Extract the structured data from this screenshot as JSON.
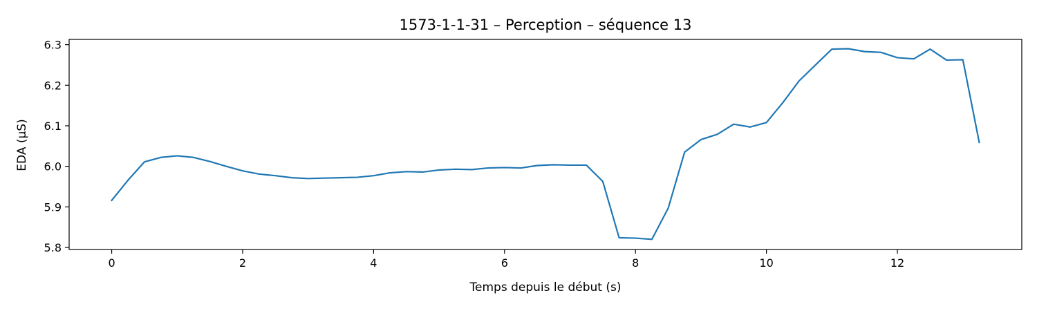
{
  "chart_data": {
    "type": "line",
    "title": "1573-1-1-31 – Perception – séquence 13",
    "xlabel": "Temps depuis le début (s)",
    "ylabel": "EDA (µS)",
    "xlim": [
      -0.65,
      13.9
    ],
    "ylim": [
      5.795,
      6.313
    ],
    "xticks": [
      0,
      2,
      4,
      6,
      8,
      10,
      12
    ],
    "yticks": [
      5.8,
      5.9,
      6.0,
      6.1,
      6.2,
      6.3
    ],
    "ytick_labels": [
      "5.8",
      "5.9",
      "6.0",
      "6.1",
      "6.2",
      "6.3"
    ],
    "grid": false,
    "line_color": "#1f77b4",
    "series": [
      {
        "x": [
          0,
          0.25,
          0.5,
          0.75,
          1.0,
          1.25,
          1.5,
          1.75,
          2.0,
          2.25,
          2.5,
          2.75,
          3.0,
          3.25,
          3.5,
          3.75,
          4.0,
          4.25,
          4.5,
          4.75,
          5.0,
          5.25,
          5.5,
          5.75,
          6.0,
          6.25,
          6.5,
          6.75,
          7.0,
          7.25,
          7.5,
          7.75,
          8.0,
          8.25,
          8.5,
          8.75,
          9.0,
          9.25,
          9.5,
          9.75,
          10.0,
          10.25,
          10.5,
          10.75,
          11.0,
          11.25,
          11.5,
          11.75,
          12.0,
          12.25,
          12.5,
          12.75,
          13.0,
          13.25
        ],
        "y": [
          5.916,
          5.966,
          6.011,
          6.022,
          6.026,
          6.022,
          6.012,
          6.0,
          5.989,
          5.981,
          5.977,
          5.972,
          5.97,
          5.971,
          5.972,
          5.973,
          5.977,
          5.984,
          5.987,
          5.986,
          5.991,
          5.993,
          5.992,
          5.996,
          5.997,
          5.996,
          6.002,
          6.004,
          6.003,
          6.003,
          5.963,
          5.824,
          5.823,
          5.82,
          5.897,
          6.035,
          6.066,
          6.079,
          6.104,
          6.097,
          6.108,
          6.157,
          6.211,
          6.25,
          6.289,
          6.29,
          6.283,
          6.281,
          6.268,
          6.265,
          6.289,
          6.262,
          6.263,
          6.059
        ]
      }
    ]
  }
}
